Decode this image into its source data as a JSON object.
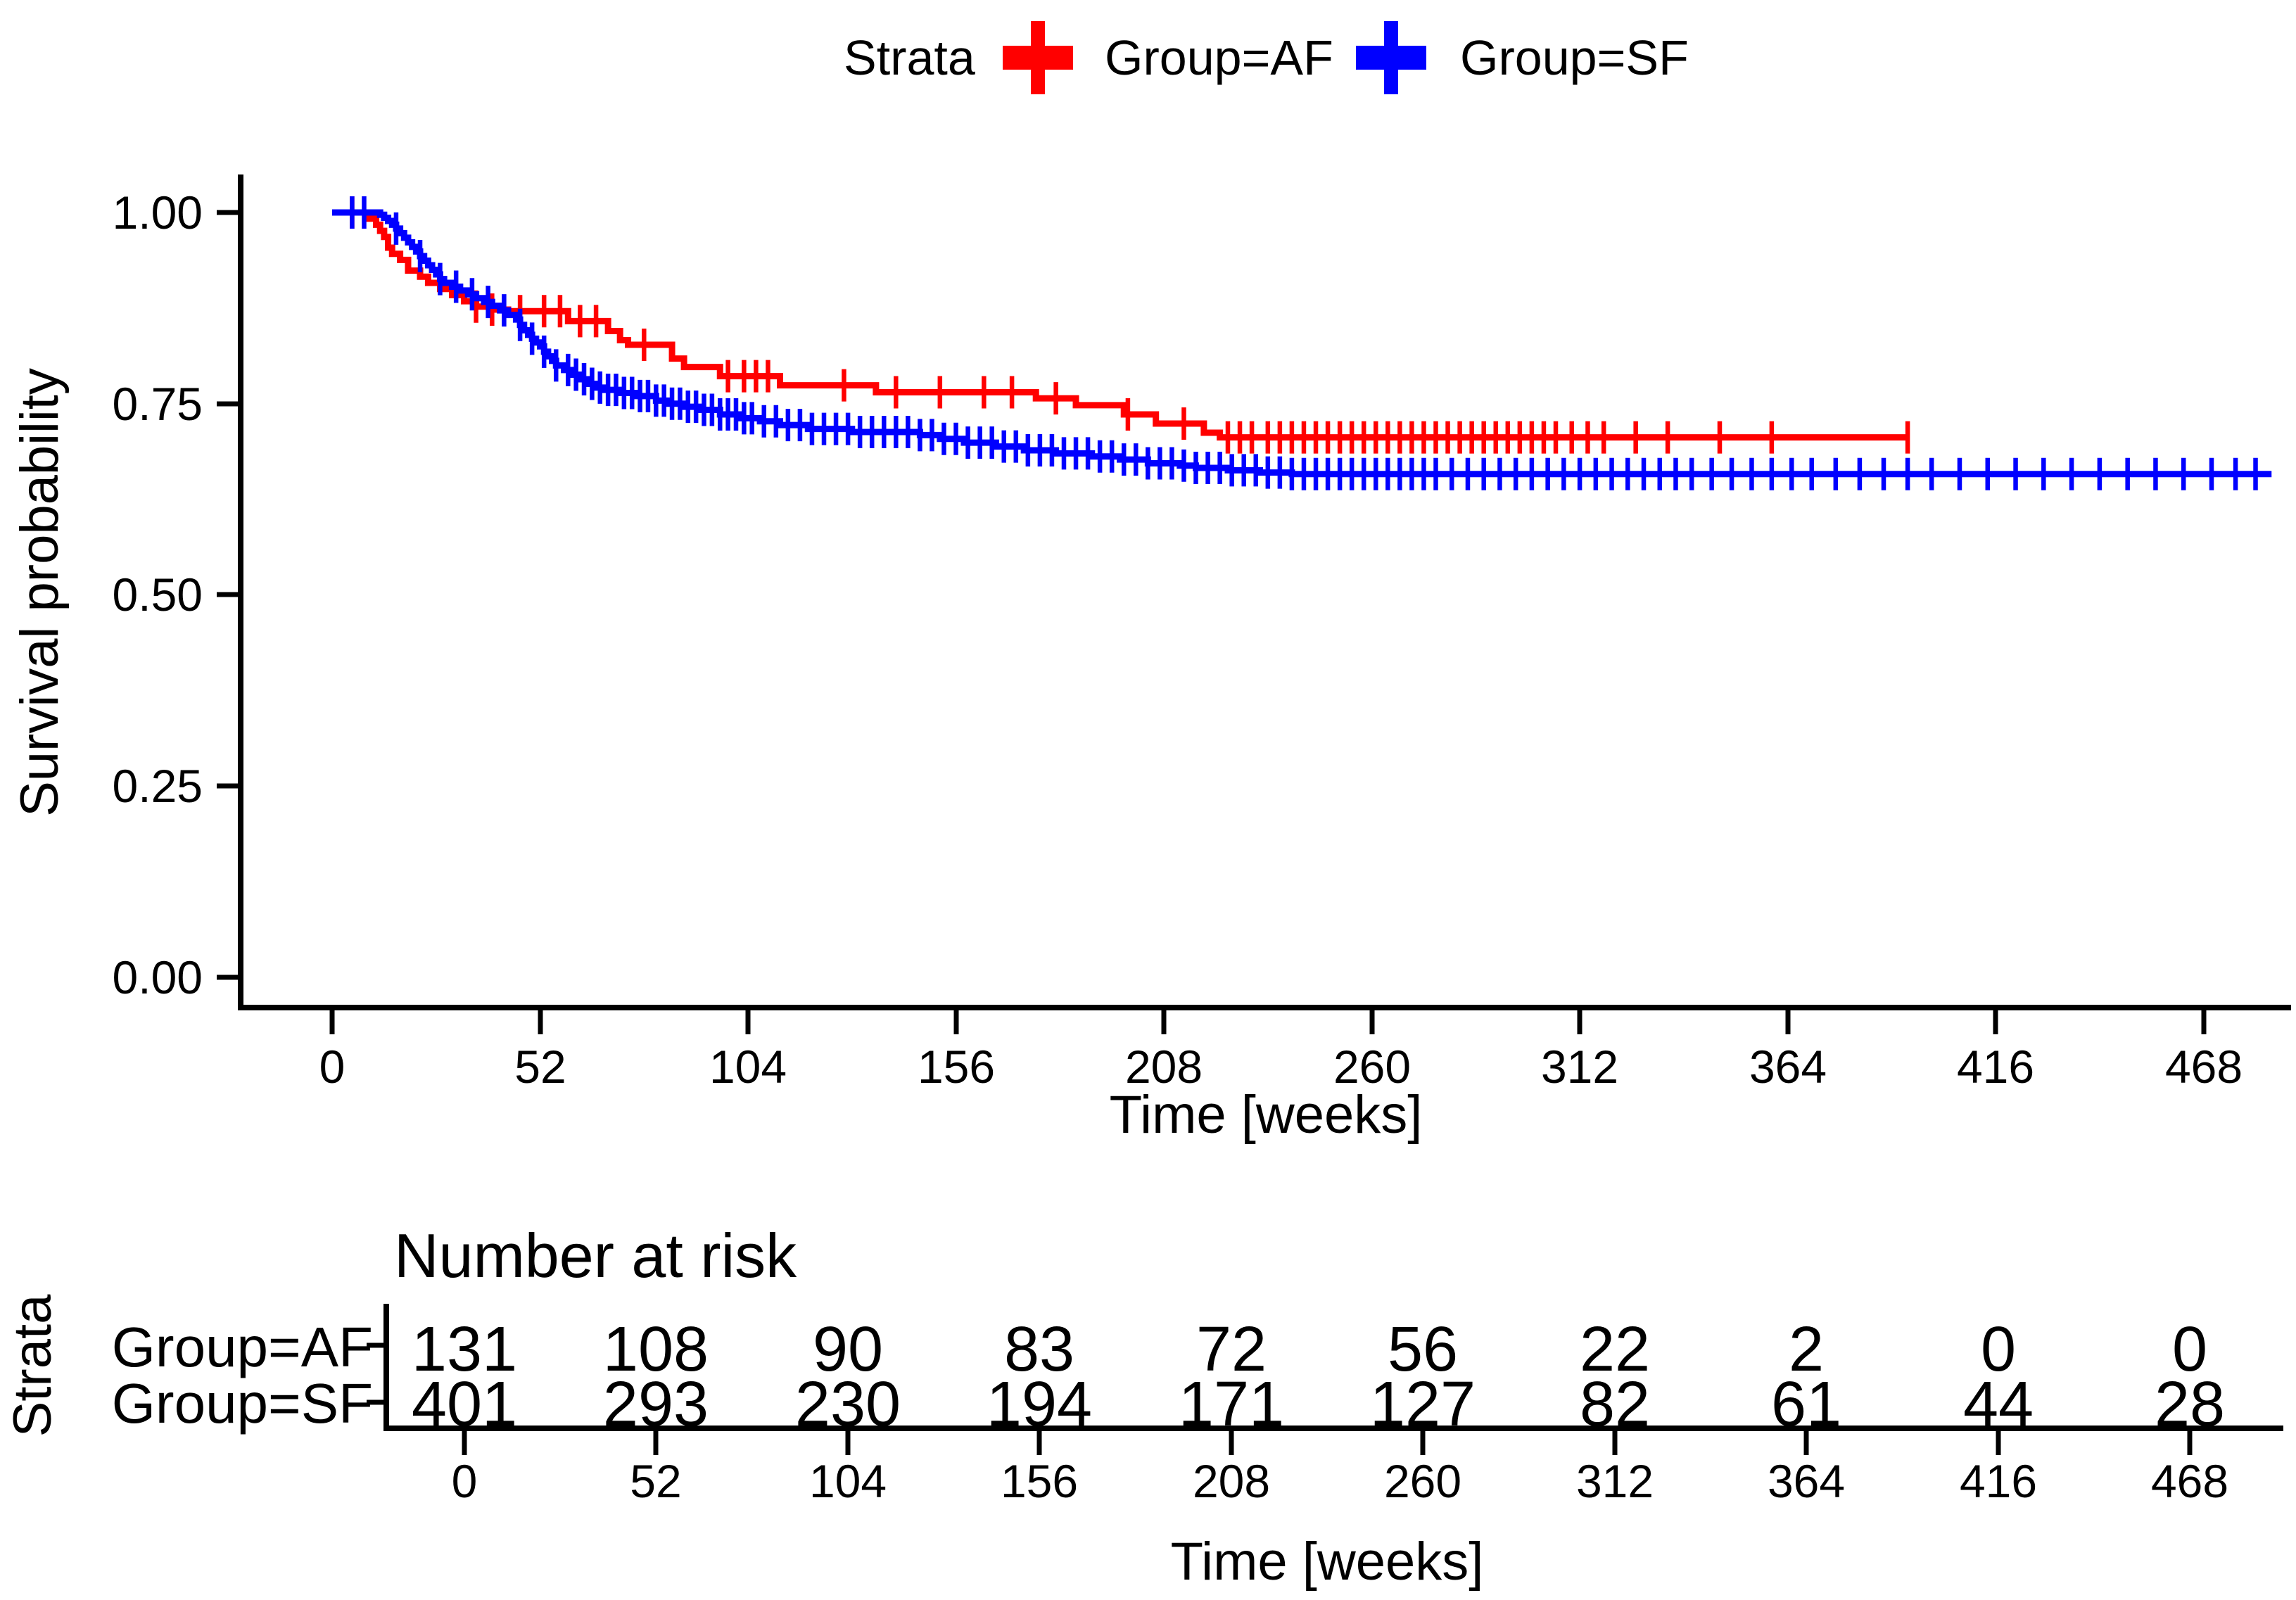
{
  "legend": {
    "title": "Strata",
    "position": "top",
    "items": [
      {
        "label": "Group=AF",
        "color": "#FF0000"
      },
      {
        "label": "Group=SF",
        "color": "#0000FF"
      }
    ]
  },
  "chart_data": {
    "type": "line",
    "subtype": "kaplan-meier-step",
    "title": "",
    "xlabel": "Time [weeks]",
    "ylabel": "Survival probability",
    "xlim": [
      0,
      490
    ],
    "ylim": [
      0,
      1.0
    ],
    "grid": false,
    "x_ticks": [
      0,
      52,
      104,
      156,
      208,
      260,
      312,
      364,
      416,
      468
    ],
    "x_tick_labels": [
      "0",
      "52",
      "104",
      "156",
      "208",
      "260",
      "312",
      "364",
      "416",
      "468"
    ],
    "y_ticks": [
      1.0,
      0.75,
      0.5,
      0.25,
      0.0
    ],
    "y_tick_labels": [
      "1.00",
      "0.75",
      "0.50",
      "0.25",
      "0.00"
    ],
    "series": [
      {
        "name": "Group=AF",
        "color": "#FF0000",
        "steps": [
          [
            0,
            1.0
          ],
          [
            8,
            1.0
          ],
          [
            9,
            0.992
          ],
          [
            11,
            0.984
          ],
          [
            12,
            0.976
          ],
          [
            13,
            0.968
          ],
          [
            14,
            0.954
          ],
          [
            15,
            0.946
          ],
          [
            17,
            0.938
          ],
          [
            19,
            0.924
          ],
          [
            22,
            0.916
          ],
          [
            24,
            0.908
          ],
          [
            27,
            0.9
          ],
          [
            30,
            0.892
          ],
          [
            33,
            0.884
          ],
          [
            36,
            0.877
          ],
          [
            40,
            0.873
          ],
          [
            44,
            0.871
          ],
          [
            59,
            0.858
          ],
          [
            69,
            0.845
          ],
          [
            72,
            0.833
          ],
          [
            74,
            0.827
          ],
          [
            85,
            0.809
          ],
          [
            88,
            0.798
          ],
          [
            97,
            0.786
          ],
          [
            112,
            0.774
          ],
          [
            136,
            0.765
          ],
          [
            176,
            0.757
          ],
          [
            186,
            0.748
          ],
          [
            198,
            0.736
          ],
          [
            206,
            0.724
          ],
          [
            218,
            0.712
          ],
          [
            222,
            0.706
          ],
          [
            394,
            0.706
          ]
        ],
        "censors": [
          5,
          36,
          40,
          47,
          53,
          57,
          62,
          66,
          78,
          99,
          103,
          106,
          109,
          128,
          141,
          152,
          163,
          170,
          181,
          199,
          213,
          224,
          227,
          230,
          234,
          237,
          240,
          243,
          246,
          249,
          252,
          255,
          258,
          261,
          264,
          267,
          270,
          273,
          276,
          279,
          282,
          285,
          288,
          291,
          294,
          297,
          300,
          303,
          306,
          310,
          314,
          318,
          326,
          334,
          347,
          360,
          394
        ]
      },
      {
        "name": "Group=SF",
        "color": "#0000FF",
        "steps": [
          [
            0,
            1.0
          ],
          [
            10,
            1.0
          ],
          [
            12,
            0.997
          ],
          [
            13,
            0.993
          ],
          [
            14,
            0.989
          ],
          [
            15,
            0.984
          ],
          [
            16,
            0.979
          ],
          [
            17,
            0.973
          ],
          [
            18,
            0.967
          ],
          [
            19,
            0.961
          ],
          [
            20,
            0.955
          ],
          [
            21,
            0.949
          ],
          [
            22,
            0.943
          ],
          [
            23,
            0.937
          ],
          [
            24,
            0.931
          ],
          [
            25,
            0.925
          ],
          [
            26,
            0.919
          ],
          [
            27,
            0.913
          ],
          [
            28,
            0.908
          ],
          [
            30,
            0.903
          ],
          [
            32,
            0.898
          ],
          [
            34,
            0.893
          ],
          [
            36,
            0.888
          ],
          [
            38,
            0.883
          ],
          [
            40,
            0.878
          ],
          [
            42,
            0.872
          ],
          [
            44,
            0.866
          ],
          [
            46,
            0.86
          ],
          [
            47,
            0.853
          ],
          [
            48,
            0.846
          ],
          [
            49,
            0.84
          ],
          [
            50,
            0.835
          ],
          [
            51,
            0.83
          ],
          [
            52,
            0.825
          ],
          [
            53,
            0.818
          ],
          [
            54,
            0.812
          ],
          [
            55,
            0.806
          ],
          [
            56,
            0.8
          ],
          [
            58,
            0.794
          ],
          [
            60,
            0.788
          ],
          [
            62,
            0.782
          ],
          [
            64,
            0.776
          ],
          [
            66,
            0.771
          ],
          [
            68,
            0.768
          ],
          [
            72,
            0.764
          ],
          [
            76,
            0.76
          ],
          [
            81,
            0.754
          ],
          [
            84,
            0.75
          ],
          [
            88,
            0.746
          ],
          [
            92,
            0.742
          ],
          [
            97,
            0.736
          ],
          [
            102,
            0.731
          ],
          [
            107,
            0.727
          ],
          [
            112,
            0.722
          ],
          [
            119,
            0.717
          ],
          [
            130,
            0.713
          ],
          [
            147,
            0.709
          ],
          [
            152,
            0.704
          ],
          [
            158,
            0.699
          ],
          [
            166,
            0.694
          ],
          [
            173,
            0.689
          ],
          [
            181,
            0.685
          ],
          [
            190,
            0.681
          ],
          [
            197,
            0.677
          ],
          [
            204,
            0.672
          ],
          [
            212,
            0.669
          ],
          [
            216,
            0.666
          ],
          [
            224,
            0.663
          ],
          [
            232,
            0.66
          ],
          [
            240,
            0.658
          ],
          [
            485,
            0.658
          ]
        ],
        "censors": [
          5,
          8,
          16,
          22,
          27,
          31,
          35,
          39,
          43,
          47,
          50,
          53,
          56,
          59,
          61,
          63,
          65,
          67,
          69,
          71,
          73,
          75,
          77,
          79,
          81,
          83,
          85,
          87,
          89,
          91,
          93,
          95,
          97,
          99,
          101,
          103,
          105,
          108,
          111,
          114,
          117,
          120,
          123,
          126,
          129,
          132,
          135,
          138,
          141,
          144,
          147,
          150,
          153,
          156,
          159,
          162,
          165,
          168,
          171,
          174,
          177,
          180,
          183,
          186,
          189,
          192,
          195,
          198,
          201,
          204,
          207,
          210,
          213,
          216,
          219,
          222,
          225,
          228,
          231,
          234,
          237,
          240,
          243,
          246,
          249,
          252,
          255,
          258,
          261,
          264,
          267,
          270,
          273,
          276,
          280,
          284,
          288,
          292,
          296,
          300,
          304,
          308,
          312,
          316,
          320,
          324,
          328,
          332,
          336,
          340,
          345,
          350,
          355,
          360,
          365,
          370,
          376,
          382,
          388,
          394,
          400,
          407,
          414,
          421,
          428,
          435,
          442,
          449,
          456,
          463,
          470,
          476,
          481
        ]
      }
    ]
  },
  "risk_table": {
    "title": "Number at risk",
    "axis_label": "Strata",
    "xlabel": "Time [weeks]",
    "x_ticks": [
      0,
      52,
      104,
      156,
      208,
      260,
      312,
      364,
      416,
      468
    ],
    "x_tick_labels": [
      "0",
      "52",
      "104",
      "156",
      "208",
      "260",
      "312",
      "364",
      "416",
      "468"
    ],
    "rows": [
      {
        "label": "Group=AF",
        "color": "#FF0000",
        "values": [
          "131",
          "108",
          "90",
          "83",
          "72",
          "56",
          "22",
          "2",
          "0",
          "0"
        ]
      },
      {
        "label": "Group=SF",
        "color": "#0000FF",
        "values": [
          "401",
          "293",
          "230",
          "194",
          "171",
          "127",
          "82",
          "61",
          "44",
          "28"
        ]
      }
    ]
  }
}
